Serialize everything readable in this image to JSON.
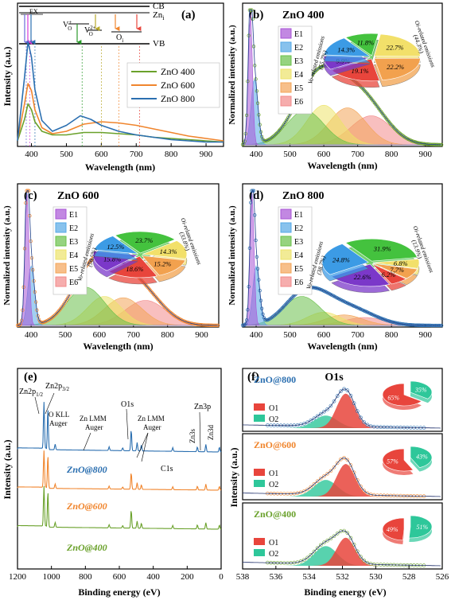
{
  "chart_data": [
    {
      "panel": "(a)",
      "type": "line",
      "xlabel": "Wavelength (nm)",
      "ylabel": "Intensity (a.u.)",
      "xlim": [
        360,
        950
      ],
      "xticks": [
        400,
        500,
        600,
        700,
        800,
        900
      ],
      "legend": "right",
      "band_labels": {
        "cb": "CB",
        "zni": "Zn",
        "zni_sub": "i",
        "vb": "VB",
        "ex": "EX",
        "vo_plus": "V",
        "vo_plus_sup": "+",
        "vo_plus_sub": "O",
        "vo_2plus": "V",
        "vo_2plus_sup": "2+",
        "vo_2plus_sub": "O",
        "oi": "O",
        "oi_sub": "i"
      },
      "series": [
        {
          "name": "ZnO 400",
          "color": "#6aa12b",
          "x": [
            360,
            380,
            390,
            400,
            410,
            430,
            460,
            500,
            550,
            600,
            650,
            700,
            750,
            800,
            850,
            900,
            950
          ],
          "y": [
            0.02,
            0.2,
            0.33,
            0.28,
            0.18,
            0.1,
            0.07,
            0.07,
            0.09,
            0.09,
            0.08,
            0.07,
            0.05,
            0.04,
            0.03,
            0.02,
            0.01
          ]
        },
        {
          "name": "ZnO 600",
          "color": "#f0852d",
          "x": [
            360,
            380,
            390,
            400,
            410,
            430,
            460,
            500,
            550,
            600,
            650,
            700,
            750,
            800,
            850,
            900,
            950
          ],
          "y": [
            0.02,
            0.33,
            0.5,
            0.44,
            0.28,
            0.13,
            0.08,
            0.1,
            0.16,
            0.18,
            0.17,
            0.15,
            0.12,
            0.09,
            0.06,
            0.04,
            0.02
          ]
        },
        {
          "name": "ZnO 800",
          "color": "#2b6fb0",
          "x": [
            360,
            380,
            390,
            400,
            410,
            430,
            460,
            500,
            540,
            570,
            600,
            650,
            700,
            750,
            800,
            850,
            900,
            950
          ],
          "y": [
            0.02,
            0.55,
            0.85,
            0.72,
            0.45,
            0.19,
            0.1,
            0.15,
            0.23,
            0.2,
            0.15,
            0.1,
            0.07,
            0.05,
            0.03,
            0.02,
            0.01,
            0.01
          ]
        }
      ]
    },
    {
      "panel": "(b)",
      "type": "line",
      "title": "ZnO 400",
      "xlabel": "Wavelength (nm)",
      "ylabel": "Normalized intensity (a.u.)",
      "xlim": [
        360,
        950
      ],
      "xticks": [
        400,
        500,
        600,
        700,
        800,
        900
      ],
      "components": [
        "E1",
        "E2",
        "E3",
        "E4",
        "E5",
        "E6"
      ],
      "component_peaks_nm": [
        383,
        395,
        545,
        600,
        670,
        740
      ],
      "component_heights": [
        1.0,
        0.5,
        0.26,
        0.3,
        0.28,
        0.22
      ],
      "pie_values": [
        11.8,
        22.7,
        22.2,
        19.1,
        9.9,
        14.3
      ],
      "pie_colors": [
        "#44c23e",
        "#f2e06a",
        "#f2a14e",
        "#e8453c",
        "#7b38c9",
        "#3c9be5"
      ],
      "pie_label_vo": "Vo-related emissions",
      "pie_label_vo_pct": "(55.7%)",
      "pie_label_oi": "Oi-related emissions",
      "pie_label_oi_pct": "(44.3%)"
    },
    {
      "panel": "(c)",
      "type": "line",
      "title": "ZnO 600",
      "xlabel": "Wavelength (nm)",
      "ylabel": "Normalized intensity (a.u.)",
      "xlim": [
        360,
        950
      ],
      "xticks": [
        400,
        500,
        600,
        700,
        800,
        900
      ],
      "components": [
        "E1",
        "E2",
        "E3",
        "E4",
        "E5",
        "E6"
      ],
      "component_peaks_nm": [
        388,
        400,
        560,
        615,
        670,
        735
      ],
      "component_heights": [
        1.0,
        0.45,
        0.29,
        0.22,
        0.21,
        0.19
      ],
      "pie_values": [
        23.7,
        14.3,
        15.2,
        18.6,
        15.8,
        12.5
      ],
      "pie_colors": [
        "#44c23e",
        "#f2e06a",
        "#f2a14e",
        "#e8453c",
        "#7b38c9",
        "#3c9be5"
      ],
      "pie_label_vo": "Vo-related emissions",
      "pie_label_vo_pct": "(50.5%)",
      "pie_label_oi": "Oi-related emissions",
      "pie_label_oi_pct": "(33.8%)"
    },
    {
      "panel": "(d)",
      "type": "line",
      "title": "ZnO 800",
      "xlabel": "Wavelength (nm)",
      "ylabel": "Normalized intensity (a.u.)",
      "xlim": [
        360,
        950
      ],
      "xticks": [
        400,
        500,
        600,
        700,
        800,
        900
      ],
      "components": [
        "E1",
        "E2",
        "E3",
        "E4",
        "E5",
        "E6"
      ],
      "component_peaks_nm": [
        388,
        400,
        535,
        600,
        660,
        720
      ],
      "component_heights": [
        1.0,
        0.45,
        0.22,
        0.1,
        0.08,
        0.06
      ],
      "pie_values": [
        31.9,
        6.8,
        7.7,
        6.2,
        22.6,
        24.8
      ],
      "pie_colors": [
        "#44c23e",
        "#f2e06a",
        "#f2a14e",
        "#e8453c",
        "#7b38c9",
        "#3c9be5"
      ],
      "pie_label_vo": "Vo-related emissions",
      "pie_label_vo_pct": "(38.7%)",
      "pie_label_oi": "Oi-related emissions",
      "pie_label_oi_pct": "(13.9%)"
    },
    {
      "panel": "(e)",
      "type": "line",
      "xlabel": "Binding energy (eV)",
      "ylabel": "Intensity (a.u.)",
      "xlim": [
        1200,
        0
      ],
      "xticks": [
        1200,
        1000,
        800,
        600,
        400,
        200,
        0
      ],
      "series": [
        {
          "name": "ZnO@800",
          "color": "#2b6fb0"
        },
        {
          "name": "ZnO@600",
          "color": "#f0852d"
        },
        {
          "name": "ZnO@400",
          "color": "#6aa12b"
        }
      ],
      "annotations": {
        "zn2p12": "Zn2p",
        "zn2p12_sub": "1/2",
        "zn2p32": "Zn2p",
        "zn2p32_sub": "3/2",
        "okll": "O KLL",
        "okll_2": "Auger",
        "znlmm1": "Zn LMM",
        "znlmm1_2": "Auger",
        "znlmm2": "Zn LMM",
        "znlmm2_2": "Auger",
        "o1s": "O1s",
        "c1s": "C1s",
        "zn3s": "Zn3s",
        "zn3p": "Zn3p",
        "zn3d": "Zn3d"
      }
    },
    {
      "panel": "(f)",
      "type": "line",
      "title": "O1s",
      "xlabel": "Binding energy (eV)",
      "ylabel": "Intensity (a.u.)",
      "xlim": [
        538,
        526
      ],
      "xticks": [
        538,
        536,
        534,
        532,
        530,
        528,
        526
      ],
      "subplots": [
        {
          "name": "ZnO@800",
          "color": "#2b6fb0",
          "o1": 65,
          "o2": 35,
          "o1_label": "65%",
          "o2_label": "35%"
        },
        {
          "name": "ZnO@600",
          "color": "#f0852d",
          "o1": 57,
          "o2": 43,
          "o1_label": "57%",
          "o2_label": "43%"
        },
        {
          "name": "ZnO@400",
          "color": "#6aa12b",
          "o1": 49,
          "o2": 51,
          "o1_label": "49%",
          "o2_label": "51%"
        }
      ],
      "legend": [
        "O1",
        "O2"
      ]
    }
  ]
}
